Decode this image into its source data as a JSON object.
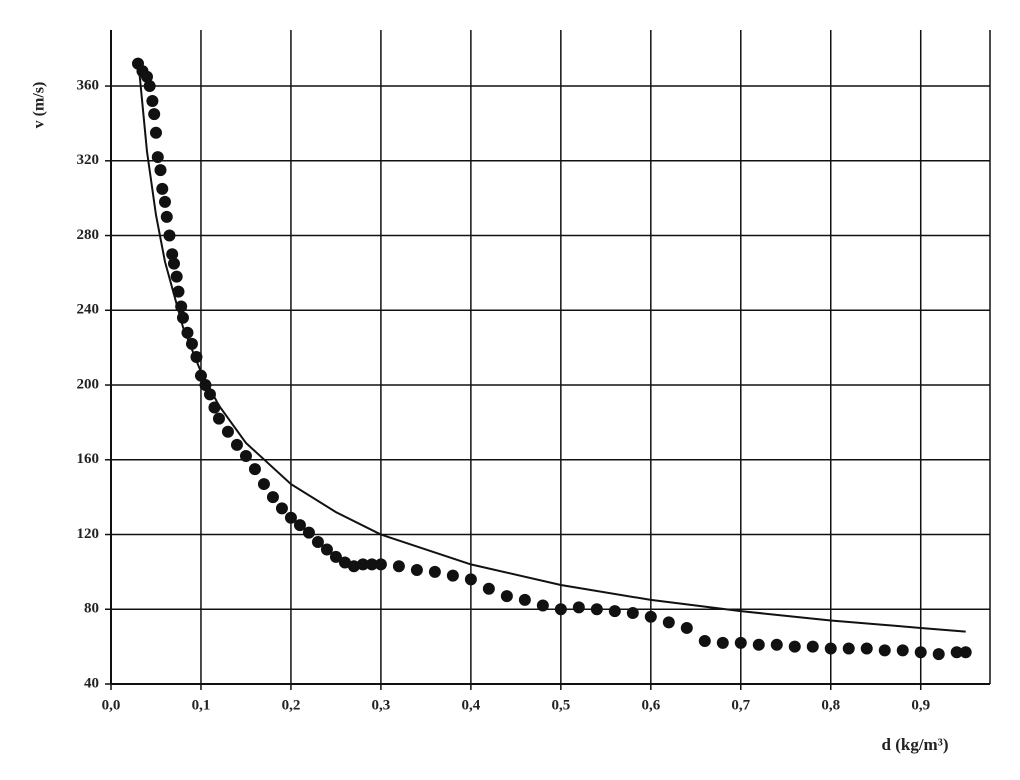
{
  "chart_data": {
    "type": "scatter",
    "x_label": "d (kg/m³)",
    "y_label": "v (m/s)",
    "xlim": [
      0,
      0.977
    ],
    "ylim": [
      40,
      390
    ],
    "xticks": [
      {
        "value": 0,
        "label": "0,0"
      },
      {
        "value": 0.1,
        "label": "0,1"
      },
      {
        "value": 0.2,
        "label": "0,2"
      },
      {
        "value": 0.3,
        "label": "0,3"
      },
      {
        "value": 0.4,
        "label": "0,4"
      },
      {
        "value": 0.5,
        "label": "0,5"
      },
      {
        "value": 0.6,
        "label": "0,6"
      },
      {
        "value": 0.7,
        "label": "0,7"
      },
      {
        "value": 0.8,
        "label": "0,8"
      },
      {
        "value": 0.9,
        "label": "0,9"
      }
    ],
    "yticks": [
      40,
      80,
      120,
      160,
      200,
      240,
      280,
      320,
      360
    ],
    "grid": true,
    "series": [
      {
        "type": "scatter",
        "color": "#111111",
        "x": [
          0.03,
          0.035,
          0.04,
          0.043,
          0.046,
          0.048,
          0.05,
          0.052,
          0.055,
          0.057,
          0.06,
          0.062,
          0.065,
          0.068,
          0.07,
          0.073,
          0.075,
          0.078,
          0.08,
          0.085,
          0.09,
          0.095,
          0.1,
          0.105,
          0.11,
          0.115,
          0.12,
          0.13,
          0.14,
          0.15,
          0.16,
          0.17,
          0.18,
          0.19,
          0.2,
          0.21,
          0.22,
          0.23,
          0.24,
          0.25,
          0.26,
          0.27,
          0.28,
          0.29,
          0.3,
          0.32,
          0.34,
          0.36,
          0.38,
          0.4,
          0.42,
          0.44,
          0.46,
          0.48,
          0.5,
          0.52,
          0.54,
          0.56,
          0.58,
          0.6,
          0.62,
          0.64,
          0.66,
          0.68,
          0.7,
          0.72,
          0.74,
          0.76,
          0.78,
          0.8,
          0.82,
          0.84,
          0.86,
          0.88,
          0.9,
          0.92,
          0.94,
          0.95
        ],
        "values": [
          372,
          368,
          365,
          360,
          352,
          345,
          335,
          322,
          315,
          305,
          298,
          290,
          280,
          270,
          265,
          258,
          250,
          242,
          236,
          228,
          222,
          215,
          205,
          200,
          195,
          188,
          182,
          175,
          168,
          162,
          155,
          147,
          140,
          134,
          129,
          125,
          121,
          116,
          112,
          108,
          105,
          103,
          104,
          104,
          104,
          103,
          101,
          100,
          98,
          96,
          91,
          87,
          85,
          82,
          80,
          81,
          80,
          79,
          78,
          76,
          73,
          70,
          63,
          62,
          62,
          61,
          61,
          60,
          60,
          59,
          59,
          59,
          58,
          58,
          57,
          56,
          57,
          57
        ]
      },
      {
        "type": "line",
        "color": "#111111",
        "x": [
          0.03,
          0.04,
          0.05,
          0.06,
          0.08,
          0.1,
          0.12,
          0.15,
          0.2,
          0.25,
          0.3,
          0.4,
          0.5,
          0.6,
          0.7,
          0.8,
          0.9,
          0.95
        ],
        "values": [
          375,
          325,
          291,
          266,
          231,
          207,
          189,
          169,
          147,
          132,
          120,
          104,
          93,
          85,
          79,
          74,
          70,
          68
        ]
      }
    ]
  }
}
